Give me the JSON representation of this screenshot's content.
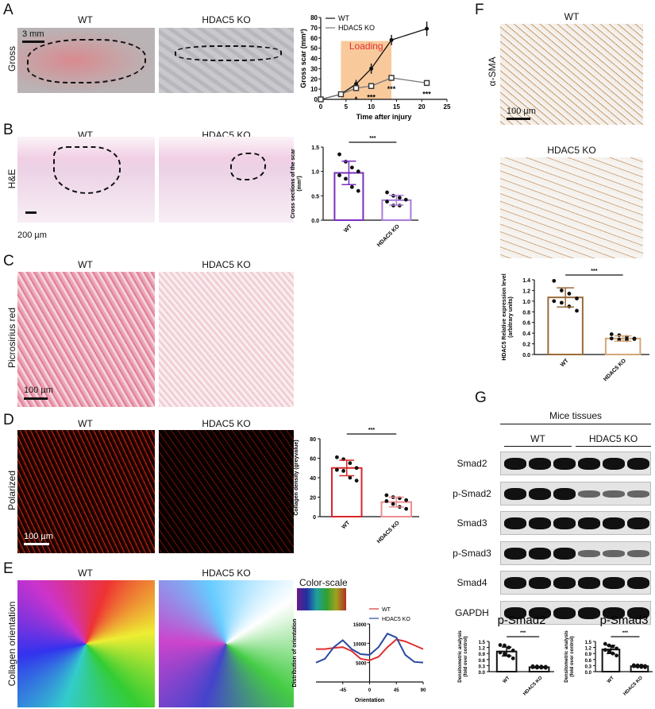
{
  "panels": {
    "A": {
      "label": "A",
      "row_label": "Gross",
      "wt": "WT",
      "ko": "HDAC5 KO",
      "scale": "3 mm"
    },
    "B": {
      "label": "B",
      "row_label": "H&E",
      "wt": "WT",
      "ko": "HDAC5 KO",
      "scale": "200 µm"
    },
    "C": {
      "label": "C",
      "row_label": "Picrosirius red",
      "wt": "WT",
      "ko": "HDAC5 KO",
      "scale": "100 µm"
    },
    "D": {
      "label": "D",
      "row_label": "Polarized",
      "wt": "WT",
      "ko": "HDAC5 KO",
      "scale": "100 µm"
    },
    "E": {
      "label": "E",
      "row_label": "Collagen orientation",
      "wt": "WT",
      "ko": "HDAC5 KO",
      "color_scale": "Color-scale"
    },
    "F": {
      "label": "F",
      "row_label": "α-SMA",
      "wt": "WT",
      "ko": "HDAC5 KO",
      "scale": "100 µm"
    },
    "G": {
      "label": "G",
      "header": "Mice tissues",
      "wt": "WT",
      "ko": "HDAC5 KO",
      "blots": [
        "Smad2",
        "p-Smad2",
        "Smad3",
        "p-Smad3",
        "Smad4",
        "GAPDH"
      ],
      "ko_reduced": [
        false,
        true,
        false,
        true,
        false,
        false
      ]
    }
  },
  "chart_data": [
    {
      "id": "A",
      "type": "line",
      "xlabel": "Time after injury",
      "ylabel": "Gross scar (mm²)",
      "xlim": [
        0,
        25
      ],
      "ylim": [
        0,
        80
      ],
      "xticks": [
        0,
        5,
        10,
        15,
        20,
        25
      ],
      "yticks": [
        0,
        10,
        20,
        30,
        40,
        50,
        60,
        70,
        80
      ],
      "annotation": {
        "text": "Loading",
        "x_range": [
          4,
          14
        ],
        "color": "#f7c08a"
      },
      "series": [
        {
          "name": "WT",
          "x": [
            0,
            4,
            7,
            10,
            14,
            21
          ],
          "y": [
            0,
            5,
            15,
            30,
            58,
            69
          ],
          "err": [
            0.5,
            1,
            4,
            5,
            5,
            7
          ],
          "color": "#111",
          "marker": "filled"
        },
        {
          "name": "HDAC5 KO",
          "x": [
            0,
            4,
            7,
            10,
            14,
            21
          ],
          "y": [
            0,
            5,
            11,
            13,
            21,
            16
          ],
          "err": [
            0.5,
            1,
            3,
            3,
            3,
            3
          ],
          "color": "#777",
          "marker": "open-square"
        }
      ],
      "significance": [
        {
          "x": 7,
          "text": "*"
        },
        {
          "x": 10,
          "text": "***"
        },
        {
          "x": 14,
          "text": "***"
        },
        {
          "x": 21,
          "text": "***"
        }
      ]
    },
    {
      "id": "B",
      "type": "bar",
      "ylabel": "Cross sections of the scar (mm²)",
      "ylim": [
        0,
        1.5
      ],
      "yticks": [
        "0.0",
        "0.5",
        "1.0",
        "1.5"
      ],
      "categories": [
        "WT",
        "HDAC5 KO"
      ],
      "values": [
        0.97,
        0.41
      ],
      "sd": [
        0.24,
        0.1
      ],
      "points": [
        [
          1.35,
          1.2,
          1.08,
          1.0,
          0.92,
          0.85,
          0.68,
          0.6
        ],
        [
          0.57,
          0.5,
          0.46,
          0.42,
          0.38,
          0.3,
          0.3
        ]
      ],
      "colors": [
        "#7a2fc0",
        "#a77dd8"
      ],
      "significance": "***"
    },
    {
      "id": "D",
      "type": "bar",
      "ylabel": "Collagen density (greyvalue)",
      "ylim": [
        0,
        80
      ],
      "yticks": [
        "0",
        "20",
        "40",
        "60",
        "80"
      ],
      "categories": [
        "WT",
        "HDAC5 KO"
      ],
      "values": [
        50,
        15
      ],
      "sd": [
        8,
        5
      ],
      "points": [
        [
          61,
          59,
          55,
          50,
          48,
          47,
          40,
          37
        ],
        [
          22,
          20,
          19,
          17,
          16,
          13,
          10,
          8
        ]
      ],
      "colors": [
        "#d8262c",
        "#ee8c90"
      ],
      "significance": "***"
    },
    {
      "id": "E",
      "type": "line",
      "xlabel": "Orientation",
      "ylabel": "Distribution of orientation",
      "xlim": [
        -90,
        90
      ],
      "ylim": [
        0,
        15000
      ],
      "xticks": [
        -45,
        0,
        45,
        90
      ],
      "yticks": [
        5000,
        10000,
        15000
      ],
      "series": [
        {
          "name": "WT",
          "x": [
            -90,
            -75,
            -60,
            -45,
            -30,
            -15,
            0,
            15,
            30,
            45,
            60,
            75,
            90
          ],
          "y": [
            8500,
            8500,
            8800,
            9000,
            8000,
            6000,
            5600,
            6500,
            9000,
            11000,
            10500,
            9500,
            8500
          ],
          "color": "#e03030"
        },
        {
          "name": "HDAC5 KO",
          "x": [
            -90,
            -75,
            -60,
            -45,
            -30,
            -15,
            0,
            15,
            30,
            45,
            60,
            75,
            90
          ],
          "y": [
            5000,
            6000,
            9000,
            10800,
            8500,
            7200,
            7000,
            9000,
            12500,
            11500,
            7000,
            5200,
            5000
          ],
          "color": "#2a4aa0"
        }
      ]
    },
    {
      "id": "F",
      "type": "bar",
      "ylabel": "HDAC5 Relative expression level (arbitrary units)",
      "ylim": [
        0,
        1.4
      ],
      "yticks": [
        "0.0",
        "0.2",
        "0.4",
        "0.6",
        "0.8",
        "1.0",
        "1.2",
        "1.4"
      ],
      "categories": [
        "WT",
        "HDAC5 KO"
      ],
      "values": [
        1.07,
        0.3
      ],
      "sd": [
        0.18,
        0.05
      ],
      "points": [
        [
          1.38,
          1.2,
          1.14,
          1.05,
          1.0,
          0.97,
          0.9,
          0.82
        ],
        [
          0.38,
          0.36,
          0.33,
          0.3,
          0.3,
          0.28,
          0.27,
          0.29
        ]
      ],
      "colors": [
        "#9a6a3a",
        "#d2a878"
      ],
      "significance": "***"
    },
    {
      "id": "G1",
      "type": "bar",
      "title": "p-Smad2",
      "ylabel": "Densitometric analysis (fold over control)",
      "ylim": [
        0,
        1.5
      ],
      "yticks": [
        "0.0",
        "0.3",
        "0.6",
        "0.9",
        "1.2",
        "1.5"
      ],
      "categories": [
        "WT",
        "HDAC5 KO"
      ],
      "values": [
        1.0,
        0.22
      ],
      "sd": [
        0.22,
        0.03
      ],
      "points": [
        [
          1.32,
          1.3,
          1.2,
          1.05,
          0.95,
          0.88,
          0.78,
          0.66
        ],
        [
          0.27,
          0.26,
          0.25,
          0.24,
          0.22,
          0.2,
          0.2,
          0.19
        ]
      ],
      "colors": [
        "#111",
        "#111"
      ],
      "significance": "***"
    },
    {
      "id": "G2",
      "type": "bar",
      "title": "p-Smad3",
      "ylabel": "Densitometric analysis (fold over control)",
      "ylim": [
        0,
        1.5
      ],
      "yticks": [
        "0.0",
        "0.3",
        "0.6",
        "0.9",
        "1.2",
        "1.5"
      ],
      "categories": [
        "WT",
        "HDAC5 KO"
      ],
      "values": [
        1.1,
        0.27
      ],
      "sd": [
        0.2,
        0.04
      ],
      "points": [
        [
          1.38,
          1.3,
          1.25,
          1.15,
          1.08,
          1.0,
          0.9,
          0.8
        ],
        [
          0.32,
          0.31,
          0.3,
          0.28,
          0.27,
          0.25,
          0.23,
          0.22
        ]
      ],
      "colors": [
        "#111",
        "#111"
      ],
      "significance": "***"
    }
  ]
}
